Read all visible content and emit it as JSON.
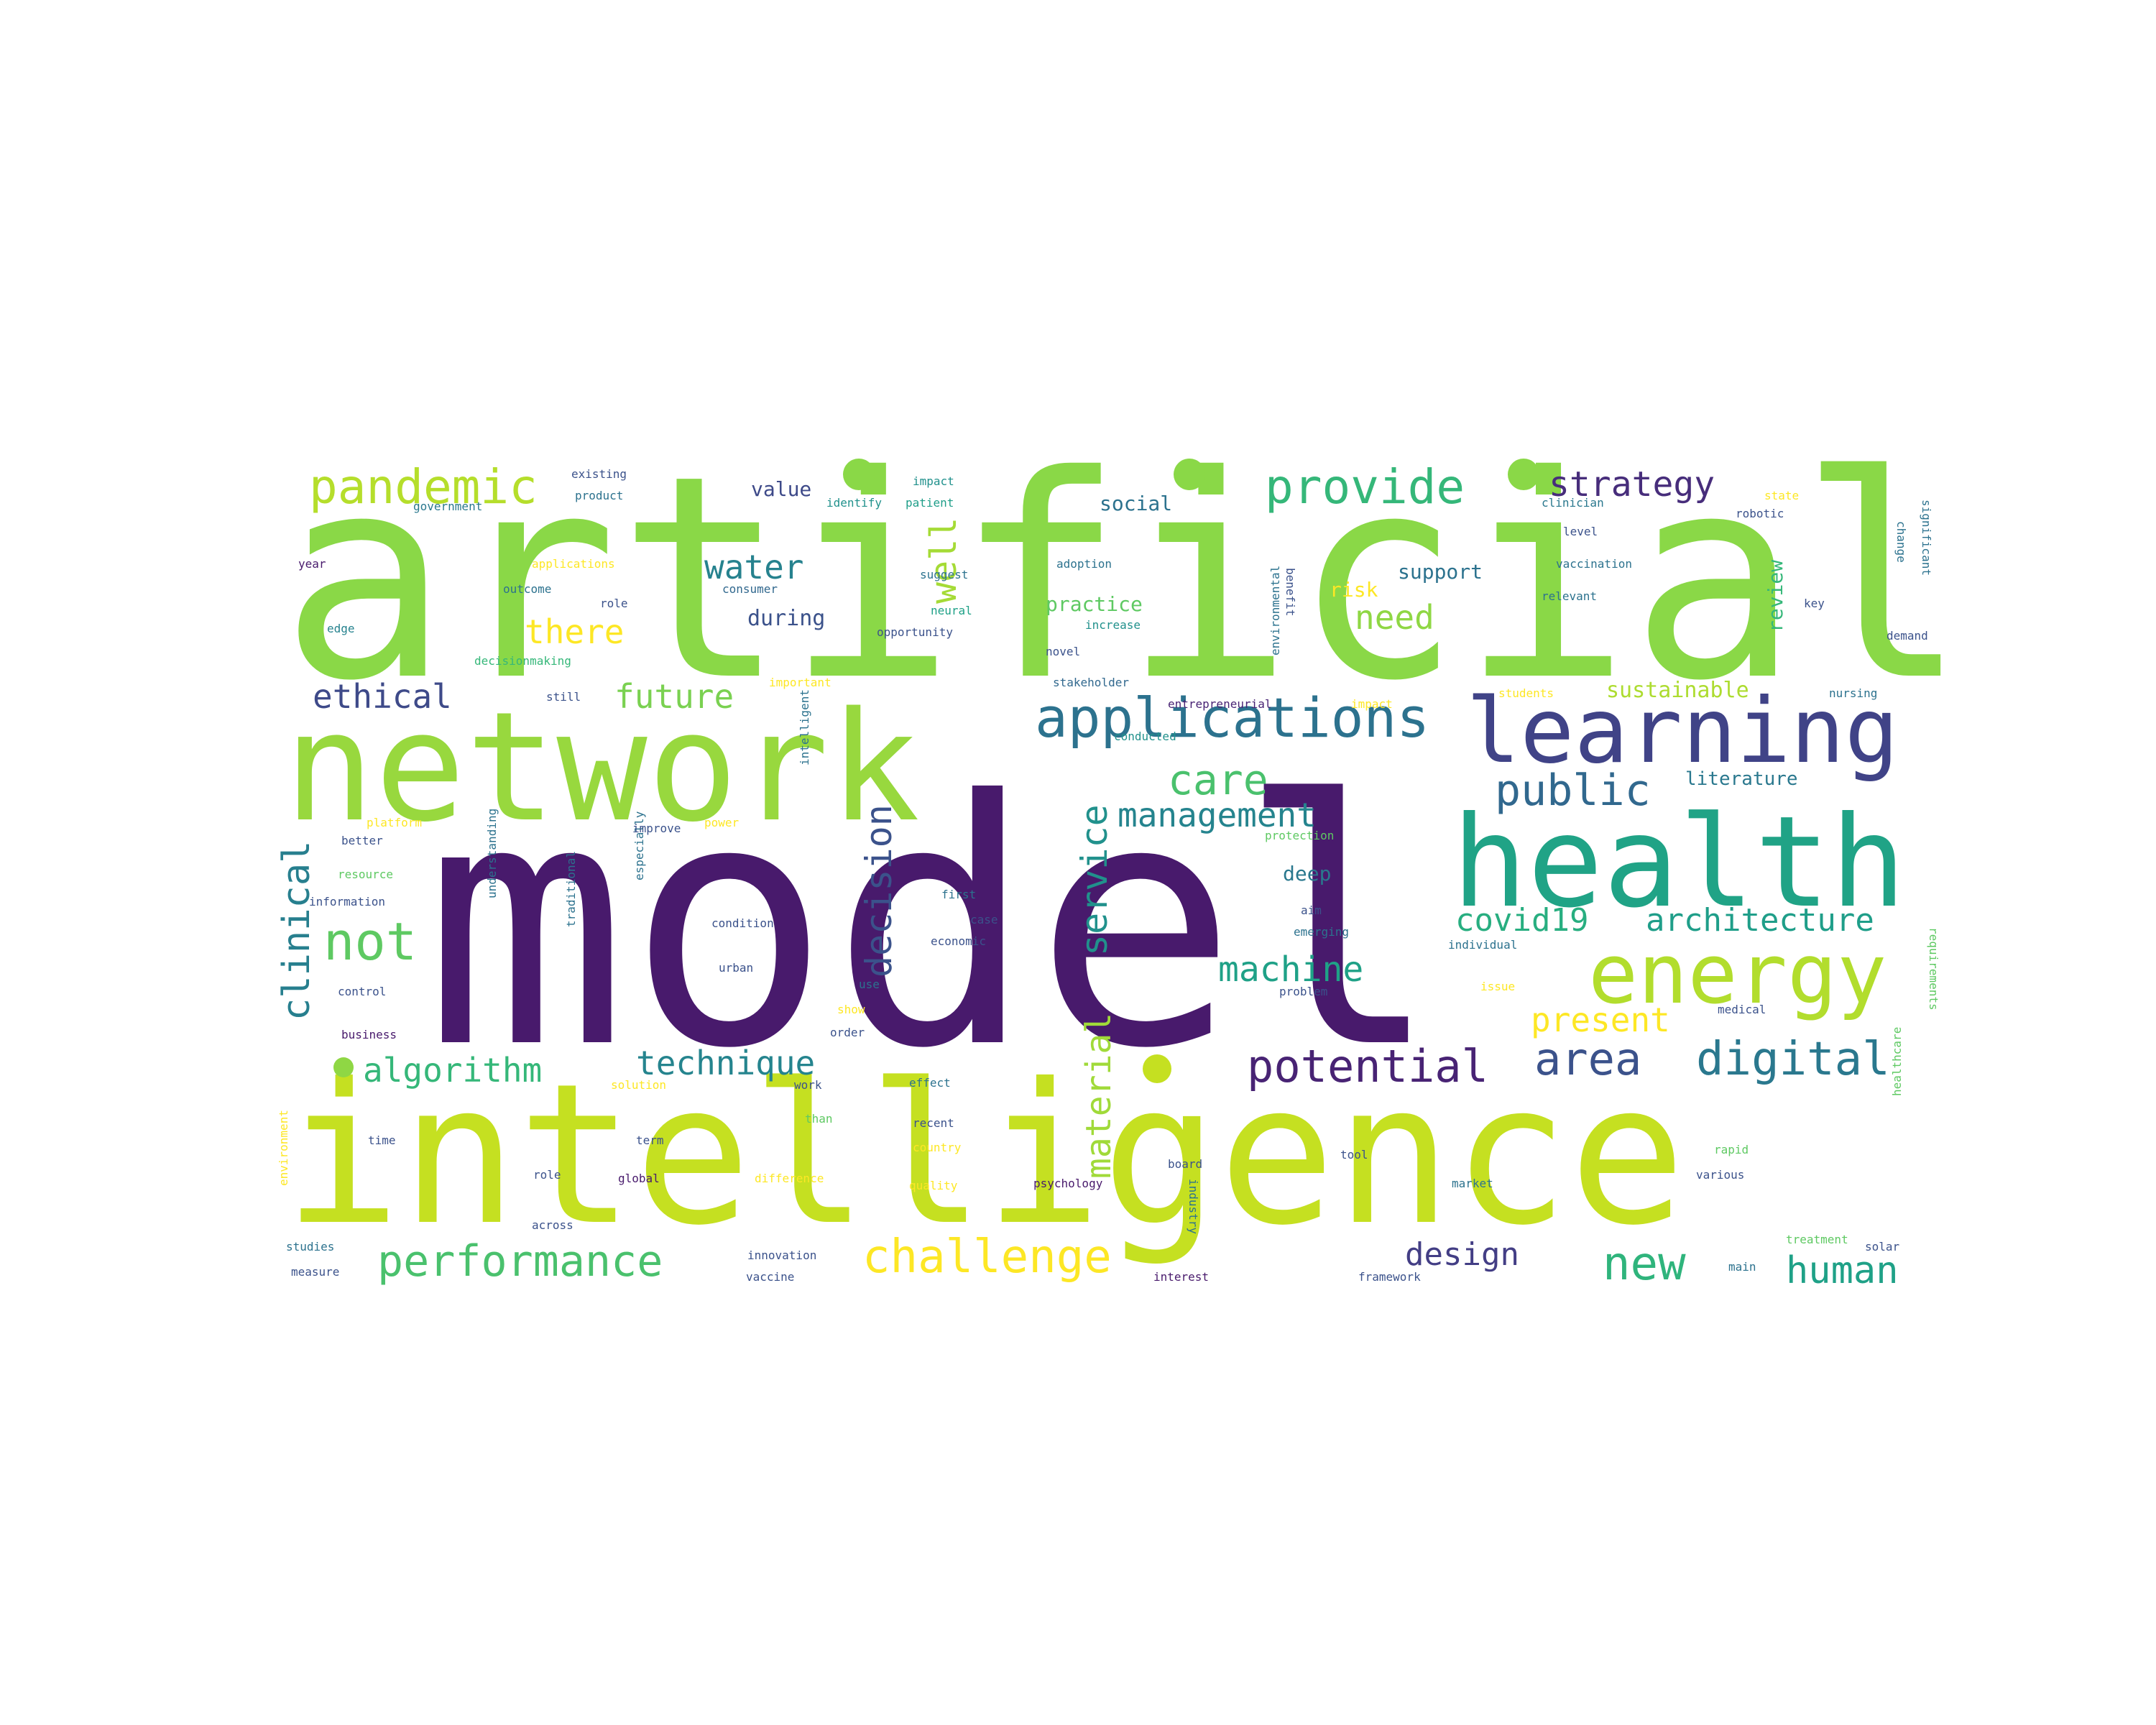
{
  "word_cloud": {
    "palette": [
      "#440154",
      "#3b528b",
      "#21918c",
      "#35b779",
      "#5ec962",
      "#8fd744",
      "#c2df23",
      "#fde725"
    ],
    "words": [
      {
        "text": "model",
        "color": "#481a6c"
      },
      {
        "text": "artificial",
        "color": "#8ad847"
      },
      {
        "text": "intelligence",
        "color": "#c5e021"
      },
      {
        "text": "network",
        "color": "#98d83e"
      },
      {
        "text": "health",
        "color": "#20a386"
      },
      {
        "text": "learning",
        "color": "#404387"
      },
      {
        "text": "energy",
        "color": "#b2dd2d"
      },
      {
        "text": "applications",
        "color": "#2c728e"
      },
      {
        "text": "pandemic",
        "color": "#b5de2b"
      },
      {
        "text": "provide",
        "color": "#35b779"
      },
      {
        "text": "challenge",
        "color": "#fde725"
      },
      {
        "text": "performance",
        "color": "#4ac16d"
      },
      {
        "text": "digital",
        "color": "#2a788e"
      },
      {
        "text": "potential",
        "color": "#482374"
      },
      {
        "text": "area",
        "color": "#3b528b"
      },
      {
        "text": "public",
        "color": "#31688e"
      },
      {
        "text": "clinical",
        "color": "#277f8e"
      },
      {
        "text": "not",
        "color": "#5ec962"
      },
      {
        "text": "care",
        "color": "#4ac16d"
      },
      {
        "text": "decision",
        "color": "#3b528b"
      },
      {
        "text": "service",
        "color": "#21918c"
      },
      {
        "text": "material",
        "color": "#a0da39"
      },
      {
        "text": "new",
        "color": "#2fb47c"
      },
      {
        "text": "human",
        "color": "#1fa187"
      },
      {
        "text": "strategy",
        "color": "#472d7b"
      },
      {
        "text": "algorithm",
        "color": "#35b779"
      },
      {
        "text": "technique",
        "color": "#25848e"
      },
      {
        "text": "architecture",
        "color": "#1f9e89"
      },
      {
        "text": "covid19",
        "color": "#28ae80"
      },
      {
        "text": "machine",
        "color": "#1fa187"
      },
      {
        "text": "management",
        "color": "#25848e"
      },
      {
        "text": "ethical",
        "color": "#3e4a89"
      },
      {
        "text": "future",
        "color": "#7ad151"
      },
      {
        "text": "water",
        "color": "#26828e"
      },
      {
        "text": "there",
        "color": "#fde725"
      },
      {
        "text": "need",
        "color": "#8fd744"
      },
      {
        "text": "present",
        "color": "#fde725"
      },
      {
        "text": "design",
        "color": "#433e85"
      },
      {
        "text": "well",
        "color": "#a5db36"
      },
      {
        "text": "sustainable",
        "color": "#addc30"
      },
      {
        "text": "support",
        "color": "#2c728e"
      },
      {
        "text": "practice",
        "color": "#5ec962"
      },
      {
        "text": "during",
        "color": "#3b528b"
      },
      {
        "text": "social",
        "color": "#2c728e"
      },
      {
        "text": "value",
        "color": "#3e4a89"
      },
      {
        "text": "review",
        "color": "#35b779"
      },
      {
        "text": "deep",
        "color": "#2a788e"
      },
      {
        "text": "risk",
        "color": "#fde725"
      },
      {
        "text": "literature",
        "color": "#2a788e"
      },
      {
        "text": "existing",
        "color": "#3b528b"
      },
      {
        "text": "product",
        "color": "#2c728e"
      },
      {
        "text": "government",
        "color": "#2a788e"
      },
      {
        "text": "year",
        "color": "#481a6c"
      },
      {
        "text": "applications",
        "color": "#fde725"
      },
      {
        "text": "outcome",
        "color": "#2c728e"
      },
      {
        "text": "role",
        "color": "#3b528b"
      },
      {
        "text": "edge",
        "color": "#26828e"
      },
      {
        "text": "decisionmaking",
        "color": "#35b779"
      },
      {
        "text": "identify",
        "color": "#21918c"
      },
      {
        "text": "patient",
        "color": "#1f9e89"
      },
      {
        "text": "impact",
        "color": "#21918c"
      },
      {
        "text": "consumer",
        "color": "#31688e"
      },
      {
        "text": "suggest",
        "color": "#2c728e"
      },
      {
        "text": "neural",
        "color": "#1fa187"
      },
      {
        "text": "opportunity",
        "color": "#3b528b"
      },
      {
        "text": "adoption",
        "color": "#2c728e"
      },
      {
        "text": "increase",
        "color": "#21918c"
      },
      {
        "text": "novel",
        "color": "#3b528b"
      },
      {
        "text": "still",
        "color": "#3b528b"
      },
      {
        "text": "important",
        "color": "#fde725"
      },
      {
        "text": "intelligent",
        "color": "#2c728e"
      },
      {
        "text": "stakeholder",
        "color": "#31688e"
      },
      {
        "text": "entrepreneurial",
        "color": "#482374"
      },
      {
        "text": "impact",
        "color": "#fde725"
      },
      {
        "text": "conducted",
        "color": "#21918c"
      },
      {
        "text": "benefit",
        "color": "#3b528b"
      },
      {
        "text": "environmental",
        "color": "#2c728e"
      },
      {
        "text": "clinician",
        "color": "#2a788e"
      },
      {
        "text": "level",
        "color": "#3b528b"
      },
      {
        "text": "vaccination",
        "color": "#2c728e"
      },
      {
        "text": "relevant",
        "color": "#2c728e"
      },
      {
        "text": "state",
        "color": "#fde725"
      },
      {
        "text": "robotic",
        "color": "#3b528b"
      },
      {
        "text": "change",
        "color": "#2c728e"
      },
      {
        "text": "significant",
        "color": "#2c728e"
      },
      {
        "text": "key",
        "color": "#3b528b"
      },
      {
        "text": "demand",
        "color": "#3b528b"
      },
      {
        "text": "students",
        "color": "#fde725"
      },
      {
        "text": "nursing",
        "color": "#2c728e"
      },
      {
        "text": "better",
        "color": "#3b528b"
      },
      {
        "text": "platform",
        "color": "#fde725"
      },
      {
        "text": "resource",
        "color": "#5ec962"
      },
      {
        "text": "information",
        "color": "#3b528b"
      },
      {
        "text": "control",
        "color": "#3b528b"
      },
      {
        "text": "business",
        "color": "#481a6c"
      },
      {
        "text": "understanding",
        "color": "#2c728e"
      },
      {
        "text": "traditional",
        "color": "#2c728e"
      },
      {
        "text": "especially",
        "color": "#2c728e"
      },
      {
        "text": "improve",
        "color": "#3b528b"
      },
      {
        "text": "power",
        "color": "#fde725"
      },
      {
        "text": "condition",
        "color": "#3b528b"
      },
      {
        "text": "urban",
        "color": "#3b528b"
      },
      {
        "text": "first",
        "color": "#2c728e"
      },
      {
        "text": "case",
        "color": "#3b528b"
      },
      {
        "text": "economic",
        "color": "#3b528b"
      },
      {
        "text": "show",
        "color": "#fde725"
      },
      {
        "text": "order",
        "color": "#3b528b"
      },
      {
        "text": "protection",
        "color": "#5ec962"
      },
      {
        "text": "aim",
        "color": "#3b528b"
      },
      {
        "text": "emerging",
        "color": "#2c728e"
      },
      {
        "text": "problem",
        "color": "#3b528b"
      },
      {
        "text": "individual",
        "color": "#2c728e"
      },
      {
        "text": "issue",
        "color": "#fde725"
      },
      {
        "text": "medical",
        "color": "#3b528b"
      },
      {
        "text": "requirements",
        "color": "#5ec962"
      },
      {
        "text": "environment",
        "color": "#fde725"
      },
      {
        "text": "solution",
        "color": "#fde725"
      },
      {
        "text": "work",
        "color": "#3b528b"
      },
      {
        "text": "effect",
        "color": "#2c728e"
      },
      {
        "text": "recent",
        "color": "#3b528b"
      },
      {
        "text": "country",
        "color": "#fde725"
      },
      {
        "text": "than",
        "color": "#5ec962"
      },
      {
        "text": "term",
        "color": "#3b528b"
      },
      {
        "text": "quality",
        "color": "#fde725"
      },
      {
        "text": "difference",
        "color": "#fde725"
      },
      {
        "text": "global",
        "color": "#481a6c"
      },
      {
        "text": "time",
        "color": "#3b528b"
      },
      {
        "text": "role",
        "color": "#3b528b"
      },
      {
        "text": "across",
        "color": "#3b528b"
      },
      {
        "text": "psychology",
        "color": "#481a6c"
      },
      {
        "text": "industry",
        "color": "#2c728e"
      },
      {
        "text": "board",
        "color": "#3b528b"
      },
      {
        "text": "tool",
        "color": "#3b528b"
      },
      {
        "text": "market",
        "color": "#2c728e"
      },
      {
        "text": "rapid",
        "color": "#5ec962"
      },
      {
        "text": "various",
        "color": "#3b528b"
      },
      {
        "text": "healthcare",
        "color": "#5ec962"
      },
      {
        "text": "treatment",
        "color": "#5ec962"
      },
      {
        "text": "solar",
        "color": "#3b528b"
      },
      {
        "text": "main",
        "color": "#2c728e"
      },
      {
        "text": "studies",
        "color": "#2c728e"
      },
      {
        "text": "measure",
        "color": "#3b528b"
      },
      {
        "text": "innovation",
        "color": "#3b528b"
      },
      {
        "text": "vaccine",
        "color": "#3b528b"
      },
      {
        "text": "interest",
        "color": "#481a6c"
      },
      {
        "text": "framework",
        "color": "#3b528b"
      },
      {
        "text": "use",
        "color": "#2c728e"
      }
    ]
  }
}
